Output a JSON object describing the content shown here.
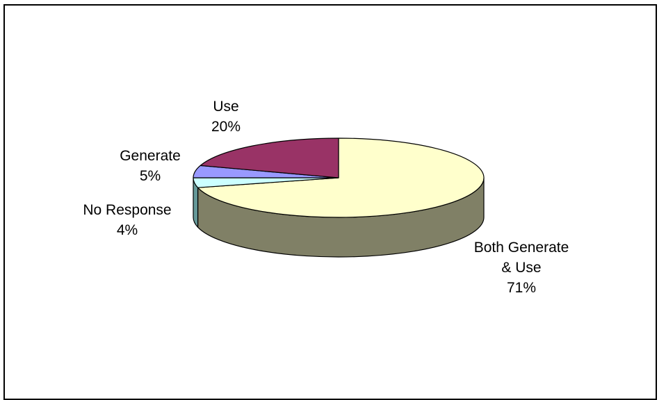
{
  "chart_data": {
    "type": "pie",
    "style": "3d",
    "title": "",
    "legend": "none",
    "slices": [
      {
        "name": "Both Generate & Use",
        "value": 71,
        "label_lines": [
          "Both Generate",
          "& Use",
          "71%"
        ],
        "color": "#FFFFCC",
        "side_color": "#808066"
      },
      {
        "name": "No Response",
        "value": 4,
        "label_lines": [
          "No Response",
          "4%"
        ],
        "color": "#CCFFFF",
        "side_color": "#669999"
      },
      {
        "name": "Generate",
        "value": 5,
        "label_lines": [
          "Generate",
          "5%"
        ],
        "color": "#9999FF",
        "side_color": "#4C4C80"
      },
      {
        "name": "Use",
        "value": 20,
        "label_lines": [
          "Use",
          "20%"
        ],
        "color": "#993366",
        "side_color": "#4C1933"
      }
    ]
  }
}
